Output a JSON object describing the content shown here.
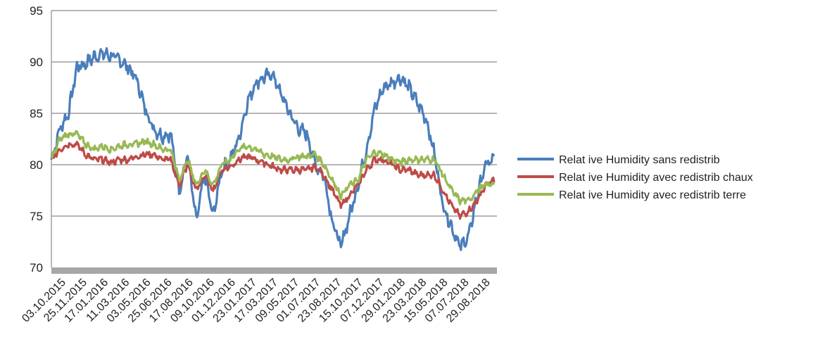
{
  "chart_data": {
    "type": "line",
    "title": "",
    "xlabel": "",
    "ylabel": "",
    "ylim": [
      70,
      95
    ],
    "yticks": [
      70,
      75,
      80,
      85,
      90,
      95
    ],
    "grid": true,
    "legend_position": "right",
    "x_tick_labels": [
      "03.10.2015",
      "25.11.2015",
      "17.01.2016",
      "11.03.2016",
      "03.05.2016",
      "25.06.2016",
      "17.08.2016",
      "09.10.2016",
      "01.12.2016",
      "23.01.2017",
      "17.03.2017",
      "09.05.2017",
      "01.07.2017",
      "23.08.2017",
      "15.10.2017",
      "07.12.2017",
      "29.01.2018",
      "23.03.2018",
      "15.05.2018",
      "07.07.2018",
      "29.08.2018"
    ],
    "series": [
      {
        "name": "Relat ive Humidity sans redistrib",
        "color": "#4a7ebb",
        "values": [
          80.5,
          83.5,
          85.0,
          89.5,
          89.8,
          90.5,
          90.8,
          90.6,
          90.2,
          89.5,
          88.3,
          85.5,
          83.5,
          82.8,
          83.0,
          77.5,
          81.0,
          74.5,
          79.0,
          75.0,
          79.5,
          80.5,
          82.5,
          86.0,
          88.0,
          88.5,
          88.8,
          86.8,
          85.0,
          83.5,
          83.0,
          80.0,
          79.0,
          74.5,
          72.0,
          75.0,
          78.0,
          81.5,
          85.5,
          87.5,
          88.0,
          88.5,
          87.5,
          86.0,
          84.5,
          81.0,
          76.0,
          74.0,
          72.0,
          73.0,
          77.0,
          80.0,
          80.5
        ]
      },
      {
        "name": "Relat ive Humidity avec redistrib chaux",
        "color": "#be4b48",
        "values": [
          80.5,
          81.5,
          82.0,
          82.0,
          81.0,
          80.5,
          80.5,
          80.2,
          80.5,
          80.5,
          80.8,
          81.0,
          81.0,
          80.5,
          80.5,
          78.0,
          80.0,
          77.5,
          79.0,
          77.5,
          79.5,
          79.8,
          80.5,
          80.8,
          80.5,
          80.2,
          79.8,
          79.5,
          79.5,
          79.5,
          79.5,
          79.8,
          79.0,
          77.5,
          76.0,
          77.0,
          78.0,
          79.5,
          80.5,
          80.5,
          80.0,
          79.5,
          79.5,
          79.0,
          79.0,
          79.0,
          77.5,
          76.0,
          75.0,
          75.5,
          76.5,
          78.0,
          78.5
        ]
      },
      {
        "name": "Relat ive Humidity avec redistrib terre",
        "color": "#98b954",
        "values": [
          80.5,
          82.5,
          83.0,
          83.0,
          82.0,
          81.5,
          81.8,
          81.5,
          81.8,
          82.0,
          82.0,
          82.3,
          82.0,
          81.5,
          81.5,
          78.5,
          80.5,
          78.0,
          79.5,
          78.0,
          80.0,
          80.5,
          81.5,
          81.8,
          81.5,
          81.0,
          80.8,
          80.5,
          80.5,
          80.8,
          80.8,
          81.0,
          80.0,
          78.5,
          77.0,
          78.0,
          78.5,
          80.5,
          81.2,
          81.0,
          80.5,
          80.2,
          80.5,
          80.5,
          80.5,
          80.5,
          79.0,
          77.5,
          76.5,
          76.5,
          77.5,
          78.0,
          78.2
        ]
      }
    ]
  }
}
